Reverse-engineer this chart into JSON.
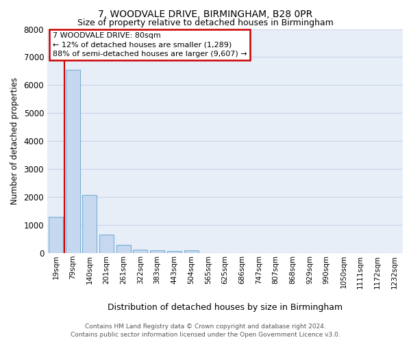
{
  "title1": "7, WOODVALE DRIVE, BIRMINGHAM, B28 0PR",
  "title2": "Size of property relative to detached houses in Birmingham",
  "xlabel": "Distribution of detached houses by size in Birmingham",
  "ylabel": "Number of detached properties",
  "categories": [
    "19sqm",
    "79sqm",
    "140sqm",
    "201sqm",
    "261sqm",
    "322sqm",
    "383sqm",
    "443sqm",
    "504sqm",
    "565sqm",
    "625sqm",
    "686sqm",
    "747sqm",
    "807sqm",
    "868sqm",
    "929sqm",
    "990sqm",
    "1050sqm",
    "1111sqm",
    "1172sqm",
    "1232sqm"
  ],
  "values": [
    1300,
    6550,
    2080,
    650,
    290,
    130,
    100,
    80,
    100,
    0,
    0,
    0,
    0,
    0,
    0,
    0,
    0,
    0,
    0,
    0,
    0
  ],
  "bar_color": "#c5d8f0",
  "bar_edge_color": "#7bafd4",
  "ylim": [
    0,
    8000
  ],
  "yticks": [
    0,
    1000,
    2000,
    3000,
    4000,
    5000,
    6000,
    7000,
    8000
  ],
  "grid_color": "#c8d4e8",
  "bg_color": "#e8eef8",
  "annotation_text": "7 WOODVALE DRIVE: 80sqm\n← 12% of detached houses are smaller (1,289)\n88% of semi-detached houses are larger (9,607) →",
  "red_line_x": 1,
  "footer1": "Contains HM Land Registry data © Crown copyright and database right 2024.",
  "footer2": "Contains public sector information licensed under the Open Government Licence v3.0."
}
